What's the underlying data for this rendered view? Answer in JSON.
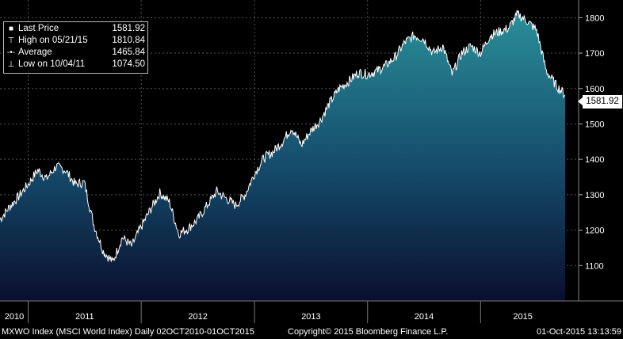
{
  "chart_data": {
    "type": "area",
    "ticker": "MXWO Index (MSCI World Index)",
    "period": "Daily 02OCT2010-01OCT2015",
    "x": [
      "2010-10",
      "2010-11",
      "2010-12",
      "2011-01",
      "2011-02",
      "2011-03",
      "2011-04",
      "2011-05",
      "2011-06",
      "2011-07",
      "2011-08",
      "2011-09",
      "2011-10",
      "2011-11",
      "2011-12",
      "2012-01",
      "2012-02",
      "2012-03",
      "2012-04",
      "2012-05",
      "2012-06",
      "2012-07",
      "2012-08",
      "2012-09",
      "2012-10",
      "2012-11",
      "2012-12",
      "2013-01",
      "2013-02",
      "2013-03",
      "2013-04",
      "2013-05",
      "2013-06",
      "2013-07",
      "2013-08",
      "2013-09",
      "2013-10",
      "2013-11",
      "2013-12",
      "2014-01",
      "2014-02",
      "2014-03",
      "2014-04",
      "2014-05",
      "2014-06",
      "2014-07",
      "2014-08",
      "2014-09",
      "2014-10",
      "2014-11",
      "2014-12",
      "2015-01",
      "2015-02",
      "2015-03",
      "2015-04",
      "2015-05",
      "2015-06",
      "2015-07",
      "2015-08",
      "2015-09",
      "2015-10"
    ],
    "values": [
      1230,
      1265,
      1295,
      1330,
      1370,
      1345,
      1380,
      1370,
      1330,
      1335,
      1215,
      1140,
      1110,
      1180,
      1155,
      1210,
      1260,
      1305,
      1280,
      1190,
      1205,
      1230,
      1270,
      1310,
      1290,
      1270,
      1300,
      1360,
      1405,
      1420,
      1450,
      1490,
      1440,
      1480,
      1510,
      1560,
      1600,
      1620,
      1645,
      1640,
      1650,
      1665,
      1690,
      1730,
      1750,
      1740,
      1700,
      1720,
      1640,
      1700,
      1720,
      1700,
      1750,
      1760,
      1770,
      1810,
      1790,
      1765,
      1650,
      1610,
      1582
    ],
    "ylim": [
      1000,
      1850
    ],
    "yticks": [
      1100,
      1200,
      1300,
      1400,
      1500,
      1600,
      1700,
      1800
    ],
    "xticks": [
      "2010",
      "2011",
      "2012",
      "2013",
      "2014",
      "2015"
    ],
    "grid": true,
    "colors": {
      "background": "#000000",
      "line": "#ffffff",
      "fill_top": "#2a8a95",
      "fill_bottom": "#0a1030",
      "grid": "#555555"
    }
  },
  "legend": {
    "items": [
      {
        "icon": "square",
        "label": "Last Price",
        "value": "1581.92"
      },
      {
        "icon": "high",
        "label": "High on 05/21/15",
        "value": "1810.84"
      },
      {
        "icon": "avg",
        "label": "Average",
        "value": "1465.84"
      },
      {
        "icon": "low",
        "label": "Low on 10/04/11",
        "value": "1074.50"
      }
    ]
  },
  "last_price_tag": "1581.92",
  "footer": {
    "left": "MXWO Index (MSCI World Index)  Daily 02OCT2010-01OCT2015",
    "middle": "Copyright© 2015 Bloomberg Finance L.P.",
    "right": "01-Oct-2015 13:13:59"
  }
}
